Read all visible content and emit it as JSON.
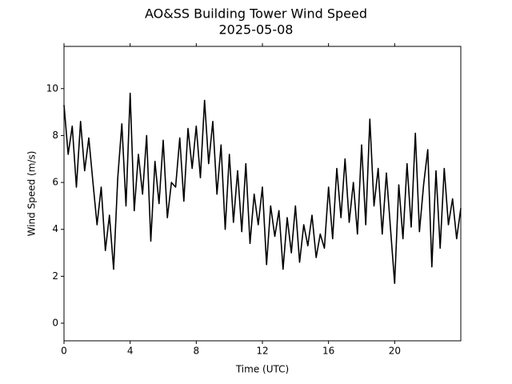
{
  "chart_data": {
    "type": "line",
    "title": "AO&SS Building Tower Wind Speed",
    "subtitle": "2025-05-08",
    "x_label": "Time (UTC)",
    "y_label": "Wind Speed (m/s)",
    "x": [
      0,
      0.25,
      0.5,
      0.75,
      1,
      1.25,
      1.5,
      1.75,
      2,
      2.25,
      2.5,
      2.75,
      3,
      3.25,
      3.5,
      3.75,
      4,
      4.25,
      4.5,
      4.75,
      5,
      5.25,
      5.5,
      5.75,
      6,
      6.25,
      6.5,
      6.75,
      7,
      7.25,
      7.5,
      7.75,
      8,
      8.25,
      8.5,
      8.75,
      9,
      9.25,
      9.5,
      9.75,
      10,
      10.25,
      10.5,
      10.75,
      11,
      11.25,
      11.5,
      11.75,
      12,
      12.25,
      12.5,
      12.75,
      13,
      13.25,
      13.5,
      13.75,
      14,
      14.25,
      14.5,
      14.75,
      15,
      15.25,
      15.5,
      15.75,
      16,
      16.25,
      16.5,
      16.75,
      17,
      17.25,
      17.5,
      17.75,
      18,
      18.25,
      18.5,
      18.75,
      19,
      19.25,
      19.5,
      19.75,
      20,
      20.25,
      20.5,
      20.75,
      21,
      21.25,
      21.5,
      21.75,
      22,
      22.25,
      22.5,
      22.75,
      23,
      23.25,
      23.5,
      23.75,
      24
    ],
    "series": [
      {
        "name": "Wind Speed",
        "color": "#000000",
        "values": [
          9.3,
          7.2,
          8.4,
          5.8,
          8.6,
          6.5,
          7.9,
          6.0,
          4.2,
          5.8,
          3.1,
          4.6,
          2.3,
          6.2,
          8.5,
          5.0,
          9.8,
          4.8,
          7.2,
          5.5,
          8.0,
          3.5,
          6.9,
          5.1,
          7.8,
          4.5,
          6.0,
          5.8,
          7.9,
          5.2,
          8.3,
          6.6,
          8.4,
          6.2,
          9.5,
          6.8,
          8.6,
          5.5,
          7.6,
          4.0,
          7.2,
          4.3,
          6.5,
          3.9,
          6.8,
          3.4,
          5.5,
          4.2,
          5.8,
          2.5,
          5.0,
          3.7,
          4.8,
          2.3,
          4.5,
          3.0,
          5.0,
          2.6,
          4.2,
          3.3,
          4.6,
          2.8,
          3.8,
          3.2,
          5.8,
          3.6,
          6.6,
          4.5,
          7.0,
          4.3,
          6.0,
          3.8,
          7.6,
          4.2,
          8.7,
          5.0,
          6.6,
          3.8,
          6.4,
          4.0,
          1.7,
          5.9,
          3.6,
          6.8,
          4.1,
          8.1,
          3.9,
          5.9,
          7.4,
          2.4,
          6.5,
          3.2,
          6.6,
          4.2,
          5.3,
          3.6,
          4.9
        ]
      }
    ],
    "xlim": [
      0,
      24
    ],
    "ylim": [
      -0.75,
      11.8
    ],
    "xticks": [
      0,
      4,
      8,
      12,
      16,
      20
    ],
    "yticks": [
      0,
      2,
      4,
      6,
      8,
      10
    ]
  }
}
